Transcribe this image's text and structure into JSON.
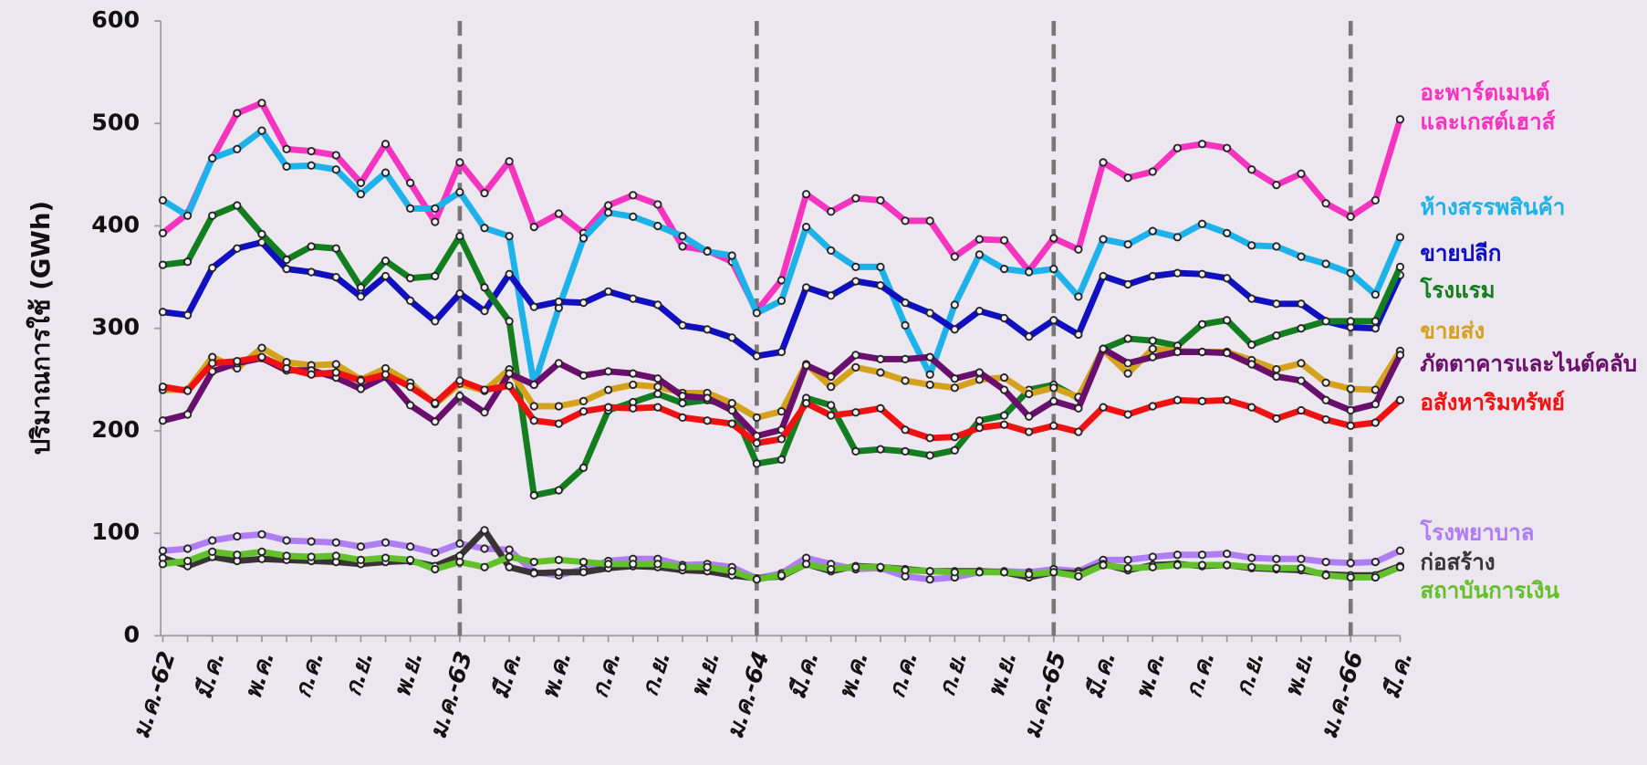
{
  "chart_data": {
    "type": "line",
    "y_label": "ปริมาณการใช้ (GWh)",
    "ylim": [
      0,
      600
    ],
    "yticks": [
      0,
      100,
      200,
      300,
      400,
      500,
      600
    ],
    "categories": [
      "ม.ค.-62",
      null,
      "มี.ค.",
      null,
      "พ.ค.",
      null,
      "ก.ค.",
      null,
      "ก.ย.",
      null,
      "พ.ย.",
      null,
      "ม.ค.-63",
      null,
      "มี.ค.",
      null,
      "พ.ค.",
      null,
      "ก.ค.",
      null,
      "ก.ย.",
      null,
      "พ.ย.",
      null,
      "ม.ค.-64",
      null,
      "มี.ค.",
      null,
      "พ.ค.",
      null,
      "ก.ค.",
      null,
      "ก.ย.",
      null,
      "พ.ย.",
      null,
      "ม.ค.-65",
      null,
      "มี.ค.",
      null,
      "พ.ค.",
      null,
      "ก.ค.",
      null,
      "ก.ย.",
      null,
      "พ.ย.",
      null,
      "ม.ค.-66",
      null,
      "มี.ค."
    ],
    "series": [
      {
        "name": "อะพาร์ตเมนต์\nและเกสต์เฮาส์",
        "color": "#f535c0",
        "values": [
          393,
          412,
          466,
          510,
          520,
          475,
          473,
          469,
          442,
          480,
          442,
          404,
          462,
          432,
          463,
          399,
          412,
          393,
          420,
          430,
          421,
          380,
          376,
          365,
          317,
          347,
          431,
          414,
          427,
          425,
          405,
          405,
          370,
          387,
          386,
          356,
          388,
          377,
          462,
          447,
          453,
          476,
          480,
          476,
          455,
          440,
          451,
          422,
          409,
          425,
          504
        ]
      },
      {
        "name": "ห้างสรรพสินค้า",
        "color": "#1eb2ea",
        "values": [
          425,
          410,
          466,
          475,
          493,
          458,
          459,
          455,
          431,
          452,
          417,
          417,
          433,
          398,
          390,
          245,
          320,
          388,
          413,
          409,
          400,
          390,
          375,
          371,
          315,
          327,
          399,
          376,
          360,
          360,
          303,
          255,
          323,
          372,
          358,
          355,
          358,
          331,
          387,
          382,
          395,
          389,
          402,
          393,
          381,
          380,
          370,
          363,
          354,
          333,
          389
        ]
      },
      {
        "name": "ขายปลีก",
        "color": "#1010c0",
        "values": [
          316,
          313,
          359,
          378,
          384,
          358,
          355,
          350,
          331,
          351,
          327,
          307,
          334,
          317,
          353,
          321,
          326,
          325,
          336,
          329,
          323,
          303,
          299,
          291,
          273,
          277,
          340,
          332,
          346,
          342,
          325,
          315,
          299,
          317,
          310,
          292,
          308,
          294,
          351,
          343,
          351,
          354,
          353,
          349,
          329,
          324,
          324,
          307,
          301,
          300,
          352
        ]
      },
      {
        "name": "โรงแรม",
        "color": "#137d1f",
        "values": [
          362,
          365,
          410,
          420,
          392,
          367,
          380,
          378,
          340,
          366,
          349,
          351,
          390,
          340,
          307,
          137,
          142,
          164,
          220,
          228,
          236,
          227,
          230,
          224,
          168,
          172,
          232,
          225,
          180,
          182,
          180,
          176,
          181,
          210,
          215,
          240,
          245,
          232,
          280,
          290,
          288,
          283,
          304,
          308,
          284,
          293,
          300,
          307,
          307,
          307,
          360
        ]
      },
      {
        "name": "ขายส่ง",
        "color": "#d4a21d",
        "values": [
          240,
          240,
          272,
          261,
          281,
          267,
          264,
          265,
          250,
          261,
          247,
          226,
          246,
          239,
          260,
          224,
          224,
          229,
          240,
          245,
          243,
          237,
          237,
          227,
          213,
          219,
          265,
          243,
          262,
          257,
          249,
          245,
          242,
          250,
          252,
          236,
          242,
          233,
          279,
          256,
          280,
          278,
          277,
          277,
          269,
          260,
          266,
          247,
          241,
          240,
          278
        ]
      },
      {
        "name": "ภัตตาคารและไนต์คลับ",
        "color": "#6a0f6e",
        "values": [
          210,
          216,
          258,
          266,
          271,
          259,
          259,
          252,
          241,
          253,
          225,
          209,
          234,
          218,
          256,
          245,
          266,
          254,
          258,
          256,
          251,
          234,
          232,
          220,
          195,
          201,
          264,
          253,
          274,
          270,
          270,
          272,
          251,
          257,
          240,
          214,
          229,
          222,
          280,
          266,
          272,
          277,
          277,
          276,
          265,
          253,
          249,
          230,
          220,
          226,
          274
        ]
      },
      {
        "name": "อสังหาริมทรัพย์",
        "color": "#f01212",
        "values": [
          243,
          239,
          266,
          268,
          272,
          261,
          255,
          257,
          249,
          255,
          243,
          227,
          249,
          240,
          244,
          210,
          207,
          219,
          223,
          222,
          223,
          213,
          210,
          207,
          188,
          192,
          227,
          215,
          218,
          222,
          201,
          193,
          194,
          203,
          206,
          199,
          205,
          199,
          223,
          216,
          224,
          230,
          229,
          230,
          223,
          212,
          220,
          211,
          205,
          208,
          230
        ]
      },
      {
        "name": "โรงพยาบาล",
        "color": "#b07ef4",
        "values": [
          83,
          85,
          93,
          97,
          99,
          93,
          92,
          91,
          87,
          91,
          87,
          81,
          90,
          85,
          84,
          62,
          59,
          65,
          73,
          75,
          75,
          69,
          70,
          67,
          56,
          61,
          76,
          70,
          65,
          66,
          58,
          55,
          57,
          62,
          63,
          62,
          65,
          63,
          74,
          74,
          77,
          79,
          79,
          80,
          76,
          75,
          75,
          72,
          71,
          72,
          83
        ]
      },
      {
        "name": "ก่อสร้าง",
        "color": "#3a3436",
        "values": [
          76,
          68,
          77,
          73,
          75,
          74,
          73,
          72,
          70,
          72,
          73,
          68,
          78,
          103,
          67,
          61,
          62,
          62,
          66,
          68,
          67,
          64,
          63,
          59,
          56,
          58,
          70,
          63,
          68,
          67,
          65,
          63,
          63,
          63,
          62,
          57,
          62,
          61,
          70,
          64,
          69,
          70,
          68,
          69,
          66,
          65,
          64,
          60,
          59,
          59,
          68
        ]
      },
      {
        "name": "สถาบันการเงิน",
        "color": "#62c02a",
        "values": [
          70,
          73,
          82,
          79,
          82,
          78,
          77,
          78,
          74,
          76,
          74,
          65,
          72,
          67,
          77,
          72,
          74,
          72,
          70,
          70,
          70,
          67,
          67,
          63,
          55,
          59,
          70,
          65,
          67,
          67,
          64,
          63,
          62,
          62,
          62,
          60,
          62,
          58,
          69,
          66,
          67,
          69,
          69,
          69,
          67,
          66,
          66,
          59,
          57,
          57,
          67
        ]
      }
    ]
  }
}
